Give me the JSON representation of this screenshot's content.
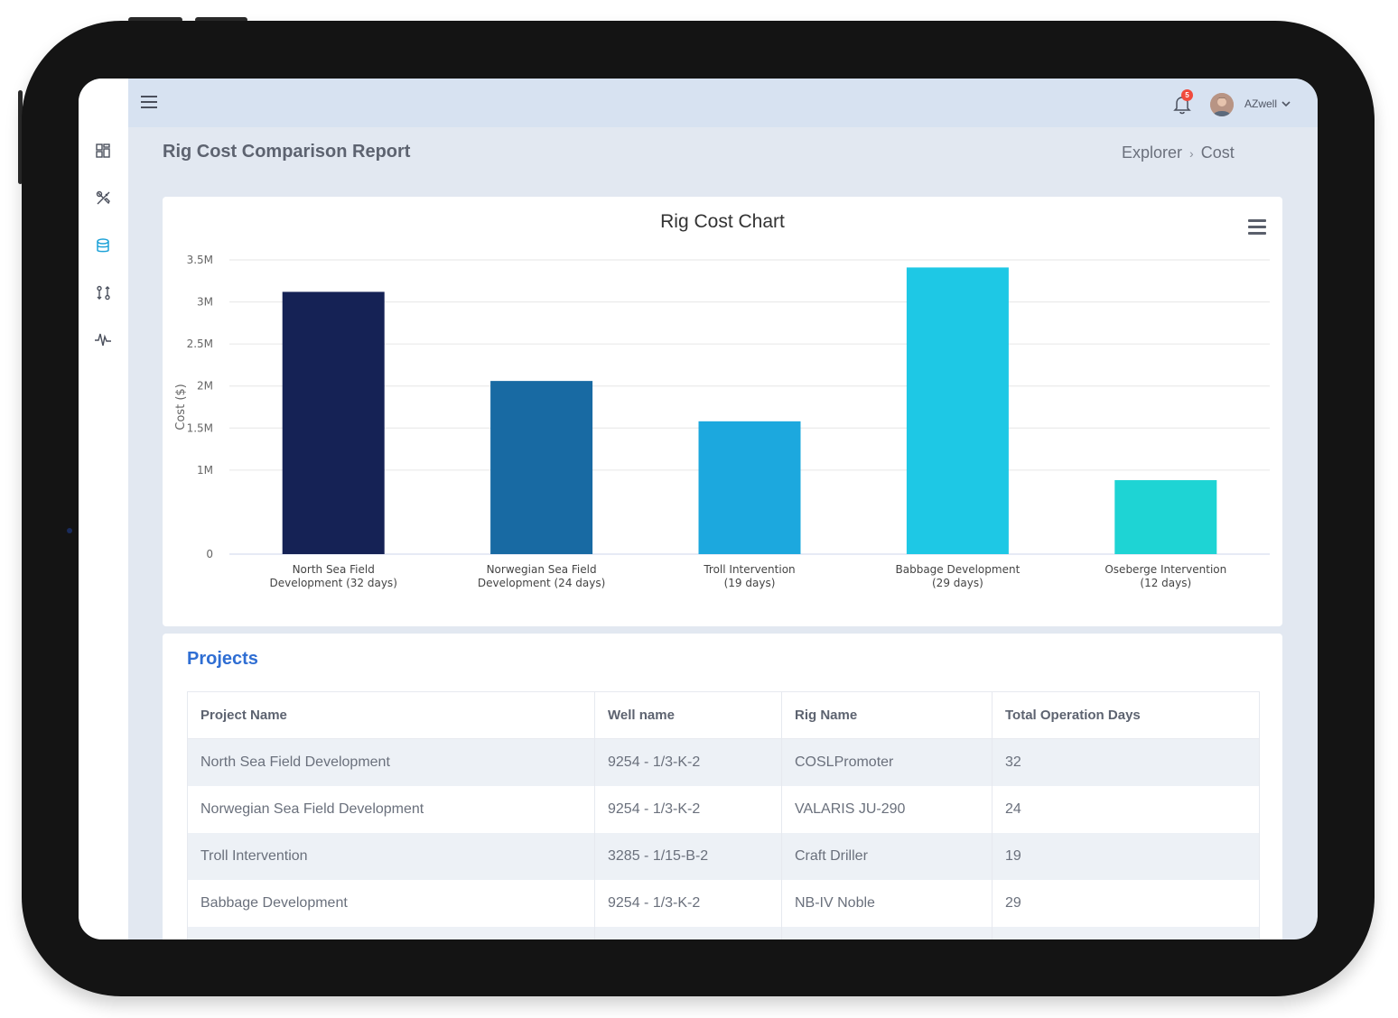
{
  "header": {
    "notification_count": "5",
    "user_name": "AZwell"
  },
  "page": {
    "title": "Rig Cost Comparison Report",
    "breadcrumb": [
      "Explorer",
      "Cost"
    ]
  },
  "sidebar": {
    "items": [
      {
        "icon": "dashboard-icon"
      },
      {
        "icon": "tools-icon"
      },
      {
        "icon": "database-icon",
        "active": true
      },
      {
        "icon": "transfer-icon"
      },
      {
        "icon": "activity-icon"
      }
    ]
  },
  "colors": {
    "accent": "#2f6ed3",
    "sidebar_active": "#1ea2d8",
    "topbar": "#d7e2f1",
    "background": "#e2e8f1"
  },
  "chart_data": {
    "type": "bar",
    "title": "Rig Cost Chart",
    "ylabel": "Cost ($)",
    "xlabel": "",
    "ylim": [
      0,
      3500000
    ],
    "y_ticks": [
      0,
      1000000,
      1500000,
      2000000,
      2500000,
      3000000,
      3500000
    ],
    "y_tick_labels": [
      "0",
      "1M",
      "1.5M",
      "2M",
      "2.5M",
      "3M",
      "3.5M"
    ],
    "grid": true,
    "categories": [
      [
        "North Sea Field",
        "Development (32 days)"
      ],
      [
        "Norwegian Sea Field",
        "Development (24 days)"
      ],
      [
        "Troll Intervention",
        "(19 days)"
      ],
      [
        "Babbage Development",
        "(29 days)"
      ],
      [
        "Oseberge Intervention",
        "(12 days)"
      ]
    ],
    "values": [
      3120000,
      2060000,
      1580000,
      3410000,
      880000
    ],
    "colors": [
      "#152255",
      "#186aa3",
      "#1ca8de",
      "#1ec8e5",
      "#1ed4d4"
    ]
  },
  "projects": {
    "title": "Projects",
    "columns": [
      "Project Name",
      "Well name",
      "Rig Name",
      "Total Operation Days"
    ],
    "rows": [
      [
        "North Sea Field Development",
        "9254 - 1/3-K-2",
        "COSLPromoter",
        "32"
      ],
      [
        "Norwegian Sea Field Development",
        "9254 - 1/3-K-2",
        "VALARIS JU-290",
        "24"
      ],
      [
        "Troll Intervention",
        "3285 - 1/15-B-2",
        "Craft Driller",
        "19"
      ],
      [
        "Babbage Development",
        "9254 - 1/3-K-2",
        "NB-IV Noble",
        "29"
      ]
    ]
  }
}
